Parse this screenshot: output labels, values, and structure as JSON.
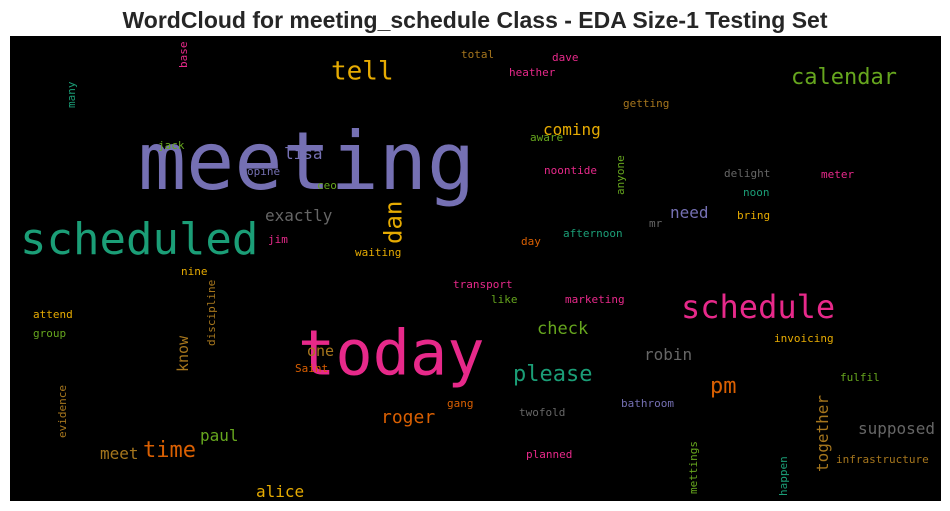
{
  "title": "WordCloud for meeting_schedule Class - EDA Size-1 Testing Set",
  "chart_data": {
    "type": "wordcloud",
    "background": "#000000",
    "words": [
      {
        "text": "meeting",
        "color": "#7570b3"
      },
      {
        "text": "today",
        "color": "#e7298a"
      },
      {
        "text": "scheduled",
        "color": "#1b9e77"
      },
      {
        "text": "schedule",
        "color": "#e7298a"
      },
      {
        "text": "tell",
        "color": "#e6ab02"
      },
      {
        "text": "calendar",
        "color": "#66a61e"
      },
      {
        "text": "dan",
        "color": "#e6ab02"
      },
      {
        "text": "please",
        "color": "#1b9e77"
      },
      {
        "text": "pm",
        "color": "#d95f02"
      },
      {
        "text": "time",
        "color": "#d95f02"
      },
      {
        "text": "roger",
        "color": "#d95f02"
      },
      {
        "text": "check",
        "color": "#66a61e"
      },
      {
        "text": "coming",
        "color": "#e6ab02"
      },
      {
        "text": "lisa",
        "color": "#7570b3"
      },
      {
        "text": "exactly",
        "color": "#666666"
      },
      {
        "text": "need",
        "color": "#7570b3"
      },
      {
        "text": "robin",
        "color": "#666666"
      },
      {
        "text": "supposed",
        "color": "#666666"
      },
      {
        "text": "together",
        "color": "#a6761d"
      },
      {
        "text": "paul",
        "color": "#66a61e"
      },
      {
        "text": "meet",
        "color": "#a6761d"
      },
      {
        "text": "alice",
        "color": "#e6ab02"
      },
      {
        "text": "know",
        "color": "#a6761d"
      },
      {
        "text": "one",
        "color": "#a6761d"
      },
      {
        "text": "opine",
        "color": "#7570b3"
      },
      {
        "text": "ceo",
        "color": "#66a61e"
      },
      {
        "text": "jim",
        "color": "#e7298a"
      },
      {
        "text": "waiting",
        "color": "#e6ab02"
      },
      {
        "text": "nine",
        "color": "#e6ab02"
      },
      {
        "text": "attend",
        "color": "#e6ab02"
      },
      {
        "text": "group",
        "color": "#66a61e"
      },
      {
        "text": "discipline",
        "color": "#a6761d"
      },
      {
        "text": "evidence",
        "color": "#a6761d"
      },
      {
        "text": "jack",
        "color": "#66a61e"
      },
      {
        "text": "many",
        "color": "#1b9e77"
      },
      {
        "text": "base",
        "color": "#e7298a"
      },
      {
        "text": "total",
        "color": "#a6761d"
      },
      {
        "text": "dave",
        "color": "#e7298a"
      },
      {
        "text": "heather",
        "color": "#e7298a"
      },
      {
        "text": "getting",
        "color": "#a6761d"
      },
      {
        "text": "aware",
        "color": "#66a61e"
      },
      {
        "text": "noontide",
        "color": "#e7298a"
      },
      {
        "text": "anyone",
        "color": "#66a61e"
      },
      {
        "text": "delight",
        "color": "#666666"
      },
      {
        "text": "meter",
        "color": "#e7298a"
      },
      {
        "text": "noon",
        "color": "#1b9e77"
      },
      {
        "text": "bring",
        "color": "#e6ab02"
      },
      {
        "text": "mr",
        "color": "#666666"
      },
      {
        "text": "afternoon",
        "color": "#1b9e77"
      },
      {
        "text": "day",
        "color": "#d95f02"
      },
      {
        "text": "transport",
        "color": "#e7298a"
      },
      {
        "text": "like",
        "color": "#66a61e"
      },
      {
        "text": "marketing",
        "color": "#e7298a"
      },
      {
        "text": "invoicing",
        "color": "#e6ab02"
      },
      {
        "text": "Saint",
        "color": "#d95f02"
      },
      {
        "text": "gang",
        "color": "#d95f02"
      },
      {
        "text": "twofold",
        "color": "#666666"
      },
      {
        "text": "bathroom",
        "color": "#7570b3"
      },
      {
        "text": "fulfil",
        "color": "#66a61e"
      },
      {
        "text": "planned",
        "color": "#e7298a"
      },
      {
        "text": "mettings",
        "color": "#66a61e"
      },
      {
        "text": "happen",
        "color": "#1b9e77"
      },
      {
        "text": "infrastructure",
        "color": "#a6761d"
      }
    ]
  }
}
